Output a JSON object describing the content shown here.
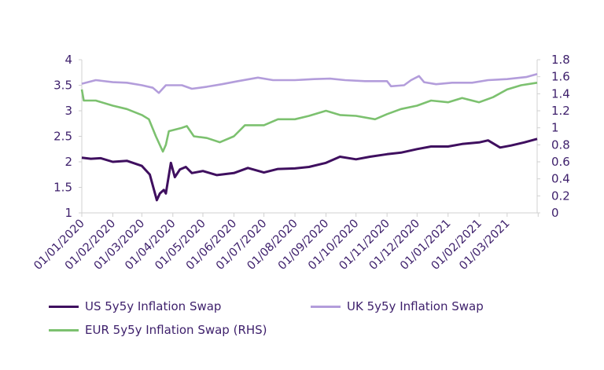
{
  "chart_data": {
    "type": "line",
    "title": "",
    "left_axis": {
      "ylim": [
        1,
        4
      ],
      "ticks": [
        "1",
        "1.5",
        "2",
        "2.5",
        "3",
        "3.5",
        "4"
      ]
    },
    "right_axis": {
      "ylim": [
        0,
        1.8
      ],
      "ticks": [
        "0",
        "0.2",
        "0.4",
        "0.6",
        "0.8",
        "1",
        "1.2",
        "1.4",
        "1.6",
        "1.8"
      ]
    },
    "x_range": [
      "2020-01-01",
      "2021-03-31"
    ],
    "x_ticks": [
      "01/01/2020",
      "01/02/2020",
      "01/03/2020",
      "01/04/2020",
      "01/05/2020",
      "01/06/2020",
      "01/07/2020",
      "01/08/2020",
      "01/09/2020",
      "01/10/2020",
      "01/11/2020",
      "01/12/2020",
      "01/01/2021",
      "01/02/2021",
      "01/03/2021"
    ],
    "grid": false,
    "legend_placement": "bottom",
    "series": [
      {
        "name": "US 5y5y Inflation Swap",
        "axis": "left",
        "color": "#3f0f5f",
        "points": [
          [
            "2020-01-01",
            2.08
          ],
          [
            "2020-01-10",
            2.06
          ],
          [
            "2020-01-20",
            2.07
          ],
          [
            "2020-02-01",
            2.0
          ],
          [
            "2020-02-15",
            2.02
          ],
          [
            "2020-03-01",
            1.92
          ],
          [
            "2020-03-09",
            1.75
          ],
          [
            "2020-03-16",
            1.25
          ],
          [
            "2020-03-19",
            1.38
          ],
          [
            "2020-03-23",
            1.45
          ],
          [
            "2020-03-25",
            1.38
          ],
          [
            "2020-03-30",
            1.98
          ],
          [
            "2020-04-03",
            1.7
          ],
          [
            "2020-04-08",
            1.85
          ],
          [
            "2020-04-14",
            1.9
          ],
          [
            "2020-04-20",
            1.78
          ],
          [
            "2020-05-01",
            1.82
          ],
          [
            "2020-05-15",
            1.74
          ],
          [
            "2020-06-01",
            1.78
          ],
          [
            "2020-06-15",
            1.88
          ],
          [
            "2020-07-01",
            1.79
          ],
          [
            "2020-07-15",
            1.86
          ],
          [
            "2020-08-01",
            1.87
          ],
          [
            "2020-08-15",
            1.9
          ],
          [
            "2020-09-01",
            1.98
          ],
          [
            "2020-09-15",
            2.1
          ],
          [
            "2020-10-01",
            2.05
          ],
          [
            "2020-10-15",
            2.1
          ],
          [
            "2020-11-01",
            2.15
          ],
          [
            "2020-11-15",
            2.18
          ],
          [
            "2020-12-01",
            2.25
          ],
          [
            "2020-12-15",
            2.3
          ],
          [
            "2021-01-01",
            2.3
          ],
          [
            "2021-01-15",
            2.35
          ],
          [
            "2021-02-01",
            2.38
          ],
          [
            "2021-02-10",
            2.42
          ],
          [
            "2021-02-22",
            2.28
          ],
          [
            "2021-03-05",
            2.32
          ],
          [
            "2021-03-18",
            2.38
          ],
          [
            "2021-03-31",
            2.45
          ]
        ]
      },
      {
        "name": "UK 5y5y Inflation Swap",
        "axis": "left",
        "color": "#b39ddb",
        "points": [
          [
            "2020-01-01",
            3.53
          ],
          [
            "2020-01-15",
            3.6
          ],
          [
            "2020-02-01",
            3.56
          ],
          [
            "2020-02-15",
            3.55
          ],
          [
            "2020-03-01",
            3.5
          ],
          [
            "2020-03-12",
            3.45
          ],
          [
            "2020-03-18",
            3.35
          ],
          [
            "2020-03-25",
            3.5
          ],
          [
            "2020-04-10",
            3.5
          ],
          [
            "2020-04-20",
            3.43
          ],
          [
            "2020-05-05",
            3.47
          ],
          [
            "2020-05-20",
            3.52
          ],
          [
            "2020-06-05",
            3.58
          ],
          [
            "2020-06-25",
            3.65
          ],
          [
            "2020-07-10",
            3.6
          ],
          [
            "2020-08-01",
            3.6
          ],
          [
            "2020-08-20",
            3.62
          ],
          [
            "2020-09-05",
            3.63
          ],
          [
            "2020-09-20",
            3.6
          ],
          [
            "2020-10-10",
            3.58
          ],
          [
            "2020-11-01",
            3.58
          ],
          [
            "2020-11-05",
            3.48
          ],
          [
            "2020-11-18",
            3.5
          ],
          [
            "2020-11-25",
            3.6
          ],
          [
            "2020-12-03",
            3.68
          ],
          [
            "2020-12-08",
            3.56
          ],
          [
            "2020-12-20",
            3.52
          ],
          [
            "2021-01-05",
            3.55
          ],
          [
            "2021-01-25",
            3.55
          ],
          [
            "2021-02-10",
            3.6
          ],
          [
            "2021-03-01",
            3.62
          ],
          [
            "2021-03-20",
            3.66
          ],
          [
            "2021-03-31",
            3.72
          ]
        ]
      },
      {
        "name": "EUR 5y5y Inflation Swap (RHS)",
        "axis": "right",
        "color": "#7cc16f",
        "points": [
          [
            "2020-01-01",
            1.45
          ],
          [
            "2020-01-03",
            1.32
          ],
          [
            "2020-01-15",
            1.32
          ],
          [
            "2020-02-01",
            1.26
          ],
          [
            "2020-02-15",
            1.22
          ],
          [
            "2020-03-01",
            1.15
          ],
          [
            "2020-03-08",
            1.1
          ],
          [
            "2020-03-15",
            0.9
          ],
          [
            "2020-03-22",
            0.72
          ],
          [
            "2020-03-25",
            0.8
          ],
          [
            "2020-03-28",
            0.96
          ],
          [
            "2020-04-10",
            1.0
          ],
          [
            "2020-04-15",
            1.02
          ],
          [
            "2020-04-22",
            0.9
          ],
          [
            "2020-05-05",
            0.88
          ],
          [
            "2020-05-18",
            0.83
          ],
          [
            "2020-06-01",
            0.9
          ],
          [
            "2020-06-12",
            1.03
          ],
          [
            "2020-07-01",
            1.03
          ],
          [
            "2020-07-15",
            1.1
          ],
          [
            "2020-08-01",
            1.1
          ],
          [
            "2020-08-15",
            1.14
          ],
          [
            "2020-09-01",
            1.2
          ],
          [
            "2020-09-15",
            1.15
          ],
          [
            "2020-10-01",
            1.14
          ],
          [
            "2020-10-20",
            1.1
          ],
          [
            "2020-11-01",
            1.16
          ],
          [
            "2020-11-15",
            1.22
          ],
          [
            "2020-12-01",
            1.26
          ],
          [
            "2020-12-15",
            1.32
          ],
          [
            "2021-01-01",
            1.3
          ],
          [
            "2021-01-15",
            1.35
          ],
          [
            "2021-02-01",
            1.3
          ],
          [
            "2021-02-15",
            1.36
          ],
          [
            "2021-03-01",
            1.45
          ],
          [
            "2021-03-15",
            1.5
          ],
          [
            "2021-03-31",
            1.53
          ]
        ]
      }
    ]
  }
}
